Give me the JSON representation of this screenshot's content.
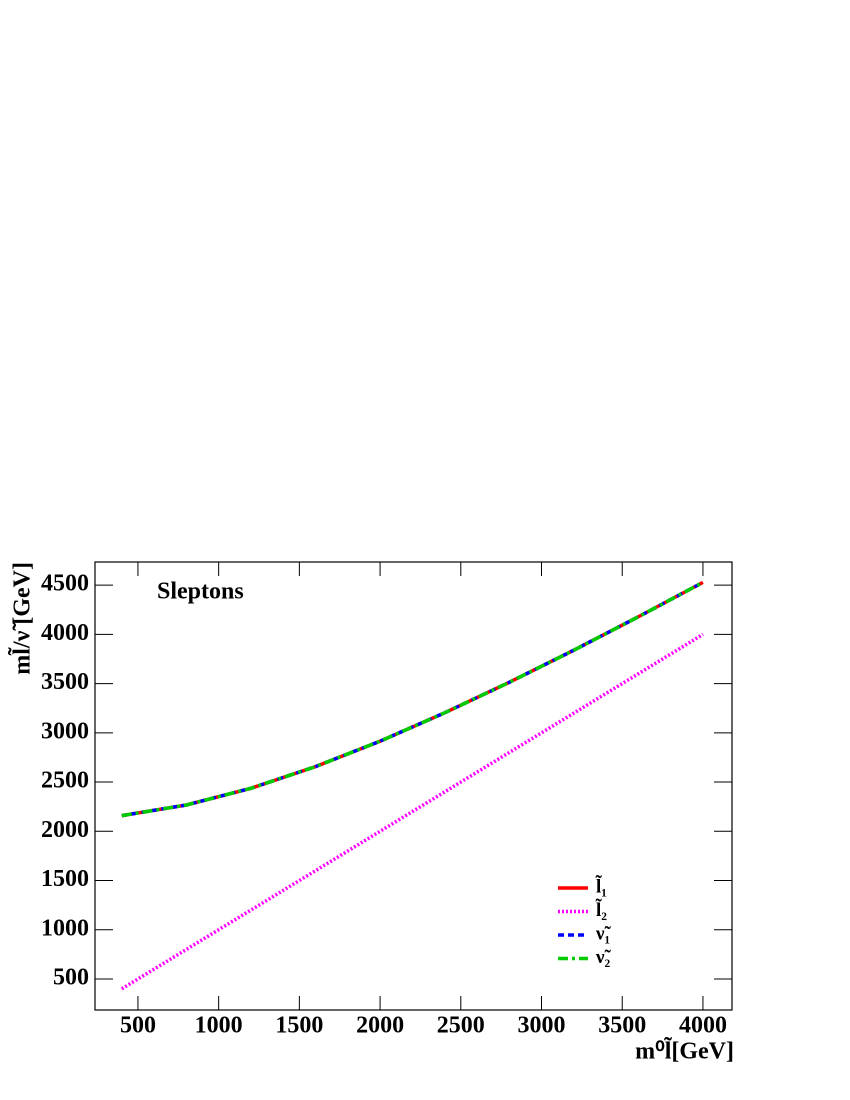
{
  "chart_data": {
    "type": "line",
    "annotation": "Sleptons",
    "x_label": "m⁰l̃[GeV]",
    "y_label": "ml̃/ν̃ [GeV]",
    "x": [
      400,
      800,
      1200,
      1600,
      2000,
      2400,
      2800,
      3200,
      3600,
      4000
    ],
    "series": [
      {
        "name": "l̃₁",
        "color": "#ff0000",
        "style": "solid",
        "values": [
          2159,
          2267,
          2437,
          2657,
          2915,
          3203,
          3513,
          3839,
          4179,
          4528
        ]
      },
      {
        "name": "l̃₂",
        "color": "#ff00ff",
        "style": "dotted",
        "values": [
          400,
          800,
          1200,
          1600,
          2000,
          2400,
          2800,
          3200,
          3600,
          4000
        ]
      },
      {
        "name": "ν̃₁",
        "color": "#0000ff",
        "style": "dashed",
        "values": [
          2159,
          2267,
          2437,
          2657,
          2915,
          3203,
          3513,
          3839,
          4179,
          4528
        ]
      },
      {
        "name": "ν̃₂",
        "color": "#00cc00",
        "style": "dashdot",
        "values": [
          2159,
          2267,
          2437,
          2657,
          2915,
          3203,
          3513,
          3839,
          4179,
          4528
        ]
      }
    ],
    "xlim": [
      234,
      4180
    ],
    "ylim": [
      185,
      4735
    ],
    "xticks": [
      500,
      1000,
      1500,
      2000,
      2500,
      3000,
      3500,
      4000
    ],
    "yticks": [
      500,
      1000,
      1500,
      2000,
      2500,
      3000,
      3500,
      4000,
      4500
    ],
    "legend": "lower-right"
  }
}
